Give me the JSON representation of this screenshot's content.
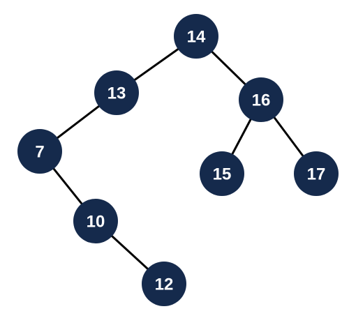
{
  "colors": {
    "node_fill": "#152a4c",
    "node_text": "#ffffff",
    "edge": "#000000"
  },
  "nodes": [
    {
      "id": "n14",
      "label": "14"
    },
    {
      "id": "n13",
      "label": "13"
    },
    {
      "id": "n16",
      "label": "16"
    },
    {
      "id": "n7",
      "label": "7"
    },
    {
      "id": "n15",
      "label": "15"
    },
    {
      "id": "n17",
      "label": "17"
    },
    {
      "id": "n10",
      "label": "10"
    },
    {
      "id": "n12",
      "label": "12"
    }
  ],
  "edges": [
    {
      "from": "n14",
      "to": "n13"
    },
    {
      "from": "n14",
      "to": "n16"
    },
    {
      "from": "n13",
      "to": "n7"
    },
    {
      "from": "n16",
      "to": "n15"
    },
    {
      "from": "n16",
      "to": "n17"
    },
    {
      "from": "n7",
      "to": "n10"
    },
    {
      "from": "n10",
      "to": "n12"
    }
  ]
}
